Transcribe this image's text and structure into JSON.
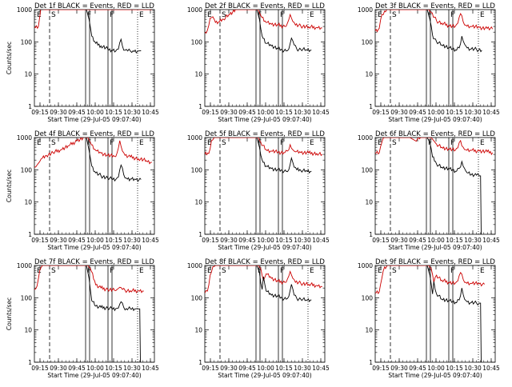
{
  "colors": {
    "events": "#000000",
    "lld": "#cc0000",
    "frame": "#000000",
    "background": "#ffffff"
  },
  "chart_data": [
    {
      "type": "line",
      "title": "Det 1f BLACK = Events, RED = LLD",
      "xlabel": "Start Time (29-Jul-05 09:07:40)",
      "ylabel": "Counts/sec",
      "yscale": "log",
      "ylim": [
        1,
        1000
      ],
      "x_ticks": [
        "09:15",
        "09:30",
        "09:45",
        "10:00",
        "10:15",
        "10:30",
        "10:45"
      ],
      "y_ticks": [
        "1",
        "10",
        "100",
        "1000"
      ],
      "markers": [
        "E",
        "S",
        "F",
        "F",
        "E"
      ],
      "series": [
        {
          "color": "red",
          "x": [
            0,
            3,
            5,
            7,
            8,
            13,
            16,
            17,
            18,
            19,
            21,
            23,
            25,
            27,
            29,
            31,
            32,
            33,
            35,
            37,
            40,
            43,
            48,
            53,
            58,
            63,
            68,
            73,
            78,
            83,
            88
          ],
          "y": [
            280,
            300,
            1150,
            1000,
            1000,
            1000,
            1000,
            1000,
            1000,
            1000,
            1000,
            1000,
            1000,
            1000,
            1000,
            1000,
            1000,
            1000,
            1000,
            1000,
            1000,
            1000,
            1000,
            1000,
            1000,
            1000,
            1000,
            1000,
            1000,
            1000,
            1000
          ]
        },
        {
          "color": "black",
          "x": [
            39,
            41,
            43,
            46,
            50,
            55,
            58,
            61,
            63,
            64,
            65,
            66,
            67,
            68,
            70,
            72,
            74,
            78,
            80
          ],
          "y": [
            1000,
            500,
            150,
            90,
            75,
            60,
            55,
            52,
            60,
            95,
            120,
            75,
            55,
            55,
            52,
            52,
            53,
            52,
            53
          ]
        }
      ]
    },
    {
      "type": "line",
      "title": "Det 2f BLACK = Events, RED = LLD",
      "xlabel": "Start Time (29-Jul-05 09:07:40)",
      "ylabel": "",
      "yscale": "log",
      "ylim": [
        1,
        1000
      ],
      "x_ticks": [
        "09:15",
        "09:30",
        "09:45",
        "10:00",
        "10:15",
        "10:30",
        "10:45"
      ],
      "y_ticks": [
        "1",
        "10",
        "100",
        "1000"
      ],
      "markers": [
        "E",
        "S",
        "F",
        "F",
        "E"
      ],
      "series": [
        {
          "color": "red",
          "x": [
            0,
            2,
            4,
            6,
            8,
            11,
            14,
            18,
            23,
            28,
            33,
            38,
            40,
            42,
            46,
            50,
            55,
            60,
            62,
            64,
            66,
            68,
            72,
            78,
            84,
            88
          ],
          "y": [
            200,
            230,
            550,
            600,
            400,
            420,
            500,
            700,
            1000,
            1000,
            1000,
            1000,
            1000,
            650,
            400,
            350,
            330,
            300,
            380,
            700,
            430,
            330,
            310,
            290,
            280,
            270
          ]
        },
        {
          "color": "black",
          "x": [
            39,
            41,
            43,
            46,
            50,
            55,
            58,
            61,
            63,
            65,
            67,
            69,
            72,
            76,
            80
          ],
          "y": [
            1000,
            500,
            150,
            90,
            75,
            60,
            55,
            52,
            60,
            130,
            80,
            60,
            58,
            57,
            55
          ]
        }
      ]
    },
    {
      "type": "line",
      "title": "Det 3f BLACK = Events, RED = LLD",
      "xlabel": "Start Time (29-Jul-05 09:07:40)",
      "ylabel": "",
      "yscale": "log",
      "ylim": [
        1,
        1000
      ],
      "x_ticks": [
        "09:15",
        "09:30",
        "09:45",
        "10:00",
        "10:15",
        "10:30",
        "10:45"
      ],
      "y_ticks": [
        "1",
        "10",
        "100",
        "1000"
      ],
      "markers": [
        "E",
        "S",
        "F",
        "F",
        "E"
      ],
      "series": [
        {
          "color": "red",
          "x": [
            0,
            3,
            5,
            7,
            10,
            15,
            20,
            25,
            30,
            35,
            38,
            40,
            42,
            46,
            50,
            55,
            60,
            62,
            64,
            66,
            68,
            72,
            78,
            84,
            88
          ],
          "y": [
            220,
            260,
            700,
            900,
            1000,
            1000,
            1000,
            1000,
            1000,
            1000,
            1000,
            1000,
            800,
            450,
            380,
            320,
            300,
            380,
            750,
            420,
            330,
            300,
            280,
            260,
            250
          ]
        },
        {
          "color": "black",
          "x": [
            39,
            41,
            43,
            46,
            50,
            55,
            58,
            61,
            63,
            65,
            67,
            69,
            72,
            76,
            80
          ],
          "y": [
            1000,
            500,
            160,
            100,
            80,
            65,
            60,
            55,
            65,
            150,
            85,
            65,
            60,
            58,
            55
          ]
        }
      ]
    },
    {
      "type": "line",
      "title": "Det 4f BLACK = Events, RED = LLD",
      "xlabel": "Start Time (29-Jul-05 09:07:40)",
      "ylabel": "Counts/sec",
      "yscale": "log",
      "ylim": [
        1,
        1000
      ],
      "x_ticks": [
        "09:15",
        "09:30",
        "09:45",
        "10:00",
        "10:15",
        "10:30",
        "10:45"
      ],
      "y_ticks": [
        "1",
        "10",
        "100",
        "1000"
      ],
      "markers": [
        "E",
        "S",
        "F",
        "F",
        "E"
      ],
      "series": [
        {
          "color": "red",
          "x": [
            0,
            2,
            4,
            6,
            9,
            14,
            20,
            26,
            32,
            38,
            40,
            42,
            46,
            50,
            55,
            60,
            62,
            64,
            66,
            68,
            72,
            78,
            84,
            88
          ],
          "y": [
            120,
            140,
            180,
            230,
            280,
            340,
            420,
            560,
            800,
            1000,
            1000,
            700,
            400,
            330,
            280,
            260,
            330,
            800,
            380,
            280,
            250,
            220,
            190,
            170
          ]
        },
        {
          "color": "black",
          "x": [
            39,
            41,
            43,
            46,
            50,
            55,
            58,
            61,
            63,
            65,
            67,
            69,
            72,
            76,
            80
          ],
          "y": [
            1000,
            400,
            130,
            80,
            65,
            55,
            52,
            50,
            60,
            140,
            70,
            55,
            52,
            50,
            50
          ]
        }
      ]
    },
    {
      "type": "line",
      "title": "Det 5f BLACK = Events, RED = LLD",
      "xlabel": "Start Time (29-Jul-05 09:07:40)",
      "ylabel": "",
      "yscale": "log",
      "ylim": [
        1,
        1000
      ],
      "x_ticks": [
        "09:15",
        "09:30",
        "09:45",
        "10:00",
        "10:15",
        "10:30",
        "10:45"
      ],
      "y_ticks": [
        "1",
        "10",
        "100",
        "1000"
      ],
      "markers": [
        "E",
        "S",
        "F",
        "F",
        "E"
      ],
      "series": [
        {
          "color": "red",
          "x": [
            0,
            3,
            5,
            7,
            10,
            15,
            20,
            25,
            30,
            35,
            38,
            40,
            42,
            46,
            50,
            55,
            60,
            62,
            64,
            66,
            68,
            72,
            78,
            84,
            88
          ],
          "y": [
            300,
            320,
            800,
            1000,
            1000,
            1000,
            1000,
            1000,
            1000,
            1000,
            1000,
            1000,
            700,
            420,
            380,
            350,
            340,
            380,
            600,
            420,
            360,
            340,
            330,
            320,
            300
          ]
        },
        {
          "color": "black",
          "x": [
            39,
            41,
            43,
            46,
            50,
            55,
            58,
            61,
            63,
            65,
            67,
            69,
            72,
            76,
            80
          ],
          "y": [
            1000,
            500,
            200,
            130,
            110,
            100,
            95,
            90,
            100,
            230,
            120,
            100,
            95,
            95,
            90
          ]
        }
      ]
    },
    {
      "type": "line",
      "title": "Det 6f BLACK = Events, RED = LLD",
      "xlabel": "Start Time (29-Jul-05 09:07:40)",
      "ylabel": "",
      "yscale": "log",
      "ylim": [
        1,
        1000
      ],
      "x_ticks": [
        "09:15",
        "09:30",
        "09:45",
        "10:00",
        "10:15",
        "10:30",
        "10:45"
      ],
      "y_ticks": [
        "1",
        "10",
        "100",
        "1000"
      ],
      "markers": [
        "E",
        "S",
        "F",
        "F",
        "E"
      ],
      "series": [
        {
          "color": "red",
          "x": [
            0,
            3,
            5,
            7,
            10,
            15,
            18,
            22,
            26,
            30,
            34,
            38,
            40,
            42,
            46,
            50,
            55,
            60,
            62,
            64,
            66,
            68,
            72,
            78,
            84,
            88
          ],
          "y": [
            320,
            330,
            700,
            1000,
            1000,
            1000,
            1000,
            1000,
            1000,
            800,
            1000,
            1000,
            1000,
            1000,
            620,
            500,
            440,
            400,
            480,
            800,
            500,
            420,
            400,
            380,
            360,
            340
          ]
        },
        {
          "color": "black",
          "x": [
            39,
            41,
            43,
            46,
            50,
            55,
            58,
            61,
            63,
            65,
            67,
            69,
            72,
            76,
            78,
            79,
            79.5
          ],
          "y": [
            1000,
            700,
            250,
            150,
            120,
            110,
            100,
            90,
            110,
            180,
            110,
            80,
            70,
            68,
            65,
            65,
            1
          ]
        }
      ]
    },
    {
      "type": "line",
      "title": "Det 7f BLACK = Events, RED = LLD",
      "xlabel": "Start Time (29-Jul-05 09:07:40)",
      "ylabel": "Counts/sec",
      "yscale": "log",
      "ylim": [
        1,
        1000
      ],
      "x_ticks": [
        "09:15",
        "09:30",
        "09:45",
        "10:00",
        "10:15",
        "10:30",
        "10:45"
      ],
      "y_ticks": [
        "1",
        "10",
        "100",
        "1000"
      ],
      "markers": [
        "E",
        "S",
        "F",
        "F",
        "E"
      ],
      "series": [
        {
          "color": "red",
          "x": [
            0,
            2,
            4,
            6,
            8,
            11,
            15,
            20,
            25,
            30,
            35,
            38,
            40,
            42,
            46,
            50,
            55,
            60,
            62,
            64,
            66,
            68,
            72,
            78,
            82
          ],
          "y": [
            180,
            230,
            700,
            1000,
            1000,
            1000,
            1000,
            1000,
            1000,
            1000,
            1000,
            1000,
            1000,
            800,
            250,
            200,
            180,
            170,
            180,
            210,
            180,
            170,
            165,
            165,
            160
          ]
        },
        {
          "color": "black",
          "x": [
            39,
            41,
            43,
            46,
            50,
            55,
            58,
            61,
            63,
            65,
            67,
            69,
            72,
            76,
            78,
            79,
            79.5
          ],
          "y": [
            1000,
            400,
            80,
            55,
            50,
            48,
            47,
            46,
            48,
            75,
            50,
            46,
            45,
            45,
            45,
            45,
            1
          ]
        }
      ]
    },
    {
      "type": "line",
      "title": "Det 8f BLACK = Events, RED = LLD",
      "xlabel": "Start Time (29-Jul-05 09:07:40)",
      "ylabel": "",
      "yscale": "log",
      "ylim": [
        1,
        1000
      ],
      "x_ticks": [
        "09:15",
        "09:30",
        "09:45",
        "10:00",
        "10:15",
        "10:30",
        "10:45"
      ],
      "y_ticks": [
        "1",
        "10",
        "100",
        "1000"
      ],
      "markers": [
        "E",
        "S",
        "F",
        "F",
        "E"
      ],
      "series": [
        {
          "color": "red",
          "x": [
            0,
            2,
            4,
            6,
            8,
            11,
            15,
            20,
            25,
            30,
            35,
            38,
            40,
            42,
            44,
            46,
            50,
            55,
            60,
            62,
            64,
            66,
            68,
            72,
            78,
            84,
            88
          ],
          "y": [
            140,
            160,
            500,
            900,
            1000,
            1000,
            1000,
            1000,
            1000,
            1000,
            1000,
            1000,
            1000,
            800,
            350,
            550,
            400,
            320,
            300,
            380,
            650,
            400,
            300,
            280,
            260,
            240,
            220
          ]
        },
        {
          "color": "black",
          "x": [
            39,
            41,
            43,
            44,
            46,
            50,
            55,
            58,
            61,
            63,
            65,
            67,
            69,
            72,
            76,
            80
          ],
          "y": [
            1000,
            600,
            180,
            450,
            160,
            120,
            110,
            95,
            90,
            110,
            260,
            120,
            95,
            90,
            85,
            85
          ]
        }
      ]
    },
    {
      "type": "line",
      "title": "Det 9f BLACK = Events, RED = LLD",
      "xlabel": "Start Time (29-Jul-05 09:07:40)",
      "ylabel": "",
      "yscale": "log",
      "ylim": [
        1,
        1000
      ],
      "x_ticks": [
        "09:15",
        "09:30",
        "09:45",
        "10:00",
        "10:15",
        "10:30",
        "10:45"
      ],
      "y_ticks": [
        "1",
        "10",
        "100",
        "1000"
      ],
      "markers": [
        "E",
        "S",
        "F",
        "F",
        "E"
      ],
      "series": [
        {
          "color": "red",
          "x": [
            0,
            3,
            5,
            7,
            10,
            15,
            20,
            25,
            30,
            35,
            38,
            40,
            42,
            44,
            46,
            50,
            55,
            60,
            62,
            64,
            66,
            68,
            72,
            78,
            82
          ],
          "y": [
            140,
            150,
            400,
            900,
            1000,
            1000,
            1000,
            1000,
            1000,
            1000,
            1000,
            1000,
            800,
            300,
            500,
            350,
            300,
            280,
            330,
            600,
            370,
            300,
            280,
            270,
            260
          ]
        },
        {
          "color": "black",
          "x": [
            39,
            41,
            43,
            44,
            46,
            50,
            55,
            58,
            61,
            63,
            65,
            67,
            69,
            72,
            76,
            78,
            79,
            79.5
          ],
          "y": [
            1000,
            500,
            130,
            320,
            130,
            90,
            80,
            75,
            70,
            85,
            200,
            90,
            75,
            70,
            68,
            68,
            68,
            1
          ]
        }
      ]
    }
  ]
}
